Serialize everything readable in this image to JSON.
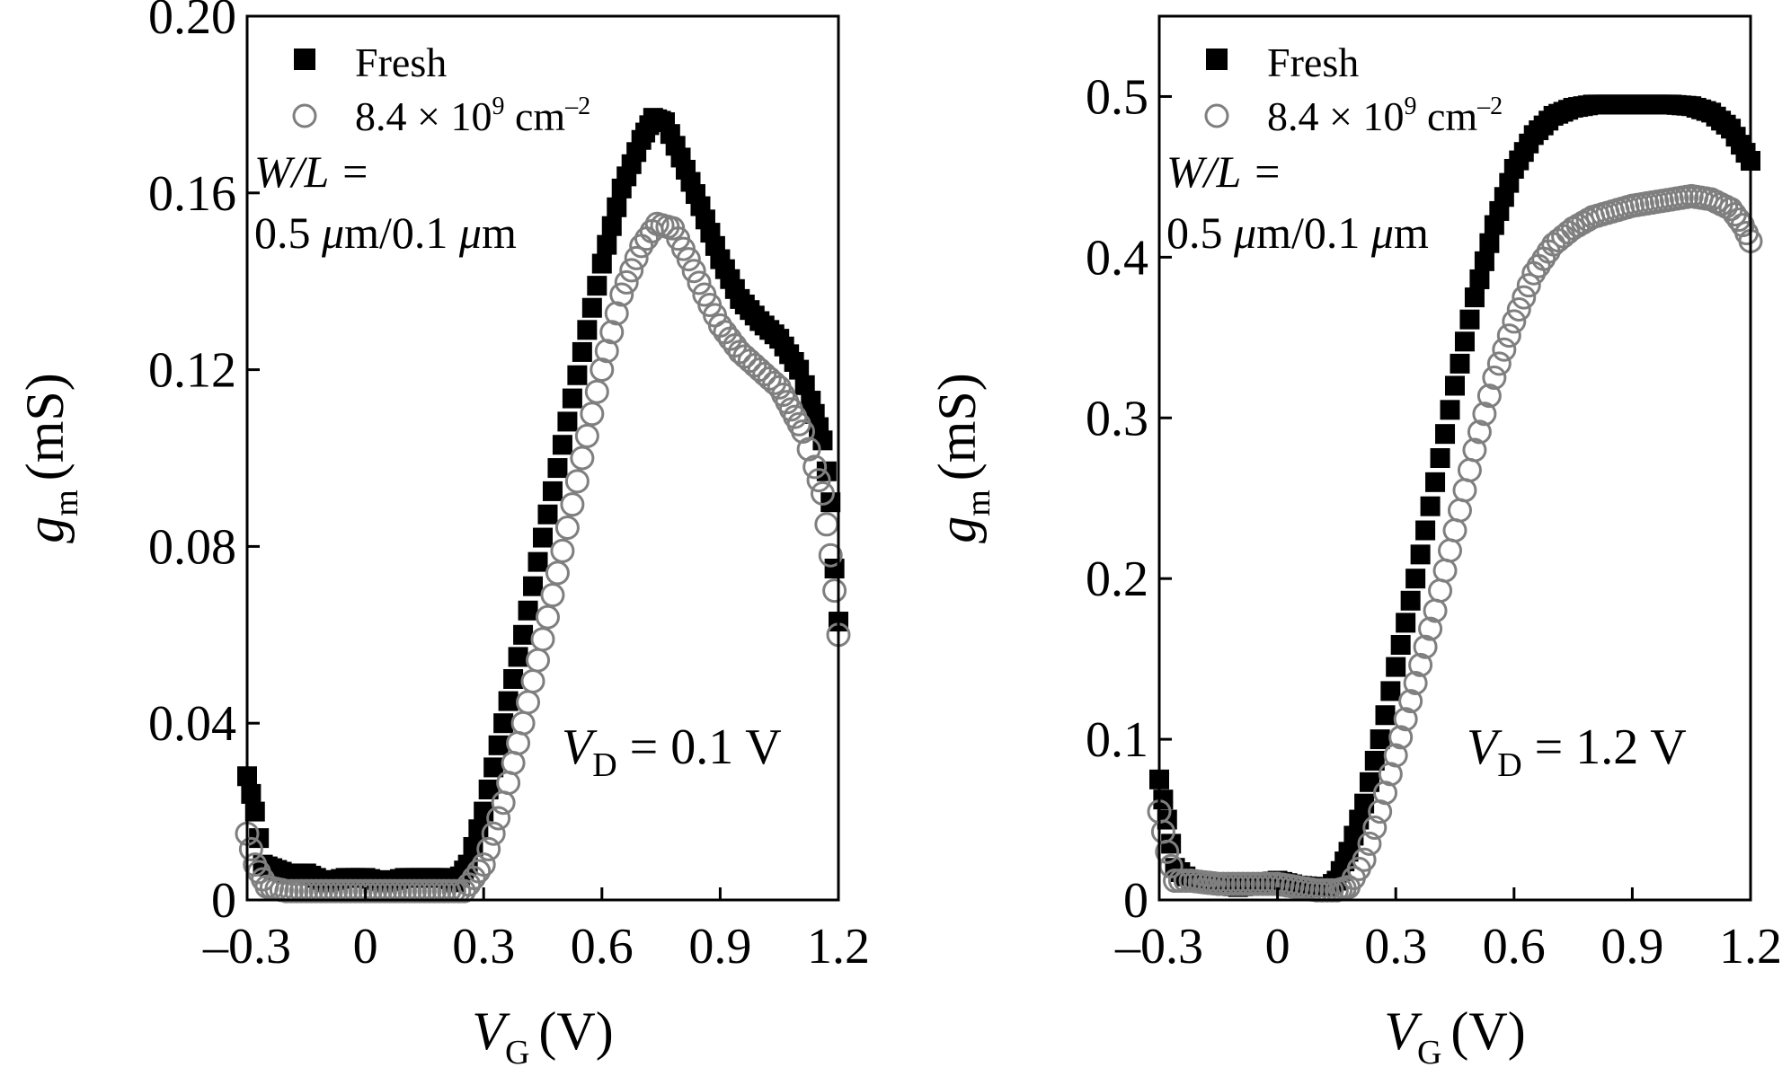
{
  "colors": {
    "fresh": "#000000",
    "stressed": "#7f7f7f",
    "axes": "#000000"
  },
  "chart_data": [
    {
      "type": "scatter",
      "panel": "left",
      "xlabel_main": "V",
      "xlabel_sub": "G",
      "xlabel_unit": "(V)",
      "ylabel_main": "g",
      "ylabel_sub": "m",
      "ylabel_unit": "(mS)",
      "xlim": [
        -0.3,
        1.2
      ],
      "ylim": [
        0,
        0.2
      ],
      "xticks": [
        -0.3,
        0,
        0.3,
        0.6,
        0.9,
        1.2
      ],
      "xtick_labels": [
        "–0.3",
        "0",
        "0.3",
        "0.6",
        "0.9",
        "1.2"
      ],
      "yticks": [
        0,
        0.04,
        0.08,
        0.12,
        0.16,
        0.2
      ],
      "ytick_labels": [
        "0",
        "0.04",
        "0.08",
        "0.12",
        "0.16",
        "0.20"
      ],
      "legend": {
        "position": "top-left",
        "items": [
          "Fresh",
          "8.4 × 10",
          "9",
          " cm",
          "–2"
        ]
      },
      "annotation_wl": {
        "line1": "W/L =",
        "line2_value": "0.5 ",
        "line2_mu": "μ",
        "line2_rest": "m/0.1 ",
        "line2_mu2": "μ",
        "line2_end": "m"
      },
      "annotation_vd": {
        "main": "V",
        "sub": "D",
        "rest": " = 0.1 V"
      },
      "series": [
        {
          "name": "Fresh",
          "marker": "square-filled",
          "points": [
            [
              -0.3,
              0.028
            ],
            [
              -0.28,
              0.02
            ],
            [
              -0.26,
              0.008
            ],
            [
              -0.2,
              0.006
            ],
            [
              -0.15,
              0.006
            ],
            [
              -0.1,
              0.004
            ],
            [
              -0.05,
              0.005
            ],
            [
              0,
              0.005
            ],
            [
              0.05,
              0.004
            ],
            [
              0.1,
              0.005
            ],
            [
              0.15,
              0.005
            ],
            [
              0.2,
              0.005
            ],
            [
              0.23,
              0.004
            ],
            [
              0.26,
              0.008
            ],
            [
              0.3,
              0.02
            ],
            [
              0.35,
              0.04
            ],
            [
              0.4,
              0.06
            ],
            [
              0.45,
              0.082
            ],
            [
              0.5,
              0.103
            ],
            [
              0.55,
              0.124
            ],
            [
              0.6,
              0.144
            ],
            [
              0.65,
              0.161
            ],
            [
              0.7,
              0.172
            ],
            [
              0.73,
              0.177
            ],
            [
              0.76,
              0.176
            ],
            [
              0.8,
              0.168
            ],
            [
              0.85,
              0.157
            ],
            [
              0.9,
              0.145
            ],
            [
              0.95,
              0.136
            ],
            [
              1.0,
              0.131
            ],
            [
              1.05,
              0.127
            ],
            [
              1.1,
              0.12
            ],
            [
              1.13,
              0.113
            ],
            [
              1.16,
              0.104
            ],
            [
              1.18,
              0.09
            ],
            [
              1.19,
              0.075
            ],
            [
              1.2,
              0.063
            ]
          ]
        },
        {
          "name": "8.4 × 10^9 cm^-2",
          "marker": "circle-open",
          "points": [
            [
              -0.3,
              0.015
            ],
            [
              -0.28,
              0.008
            ],
            [
              -0.25,
              0.003
            ],
            [
              -0.2,
              0.002
            ],
            [
              -0.1,
              0.002
            ],
            [
              0,
              0.002
            ],
            [
              0.1,
              0.002
            ],
            [
              0.2,
              0.002
            ],
            [
              0.25,
              0.002
            ],
            [
              0.3,
              0.008
            ],
            [
              0.35,
              0.022
            ],
            [
              0.4,
              0.04
            ],
            [
              0.45,
              0.059
            ],
            [
              0.5,
              0.079
            ],
            [
              0.55,
              0.1
            ],
            [
              0.6,
              0.12
            ],
            [
              0.65,
              0.137
            ],
            [
              0.7,
              0.148
            ],
            [
              0.74,
              0.153
            ],
            [
              0.78,
              0.152
            ],
            [
              0.82,
              0.145
            ],
            [
              0.86,
              0.137
            ],
            [
              0.9,
              0.13
            ],
            [
              0.95,
              0.124
            ],
            [
              1.0,
              0.12
            ],
            [
              1.05,
              0.116
            ],
            [
              1.08,
              0.111
            ],
            [
              1.11,
              0.106
            ],
            [
              1.14,
              0.098
            ],
            [
              1.16,
              0.092
            ],
            [
              1.18,
              0.078
            ],
            [
              1.19,
              0.07
            ],
            [
              1.2,
              0.06
            ]
          ]
        }
      ]
    },
    {
      "type": "scatter",
      "panel": "right",
      "xlabel_main": "V",
      "xlabel_sub": "G",
      "xlabel_unit": "(V)",
      "ylabel_main": "g",
      "ylabel_sub": "m",
      "ylabel_unit": "(mS)",
      "xlim": [
        -0.3,
        1.2
      ],
      "ylim": [
        0,
        0.55
      ],
      "xticks": [
        -0.3,
        0,
        0.3,
        0.6,
        0.9,
        1.2
      ],
      "xtick_labels": [
        "–0.3",
        "0",
        "0.3",
        "0.6",
        "0.9",
        "1.2"
      ],
      "yticks": [
        0,
        0.1,
        0.2,
        0.3,
        0.4,
        0.5
      ],
      "ytick_labels": [
        "0",
        "0.1",
        "0.2",
        "0.3",
        "0.4",
        "0.5"
      ],
      "legend": {
        "position": "top-left",
        "items": [
          "Fresh",
          "8.4 × 10",
          "9",
          " cm",
          "–2"
        ]
      },
      "annotation_wl": {
        "line1": "W/L =",
        "line2_value": "0.5 ",
        "line2_mu": "μ",
        "line2_rest": "m/0.1 ",
        "line2_mu2": "μ",
        "line2_end": "m"
      },
      "annotation_vd": {
        "main": "V",
        "sub": "D",
        "rest": " = 1.2 V"
      },
      "series": [
        {
          "name": "Fresh",
          "marker": "square-filled",
          "points": [
            [
              -0.3,
              0.075
            ],
            [
              -0.28,
              0.05
            ],
            [
              -0.26,
              0.02
            ],
            [
              -0.22,
              0.012
            ],
            [
              -0.15,
              0.01
            ],
            [
              -0.1,
              0.008
            ],
            [
              -0.05,
              0.01
            ],
            [
              0,
              0.012
            ],
            [
              0.05,
              0.009
            ],
            [
              0.1,
              0.008
            ],
            [
              0.13,
              0.008
            ],
            [
              0.15,
              0.012
            ],
            [
              0.18,
              0.03
            ],
            [
              0.22,
              0.06
            ],
            [
              0.26,
              0.1
            ],
            [
              0.3,
              0.145
            ],
            [
              0.35,
              0.2
            ],
            [
              0.4,
              0.26
            ],
            [
              0.45,
              0.32
            ],
            [
              0.5,
              0.375
            ],
            [
              0.55,
              0.42
            ],
            [
              0.6,
              0.455
            ],
            [
              0.65,
              0.476
            ],
            [
              0.7,
              0.488
            ],
            [
              0.75,
              0.493
            ],
            [
              0.8,
              0.495
            ],
            [
              0.9,
              0.495
            ],
            [
              1.0,
              0.495
            ],
            [
              1.05,
              0.494
            ],
            [
              1.1,
              0.49
            ],
            [
              1.15,
              0.48
            ],
            [
              1.2,
              0.46
            ]
          ]
        },
        {
          "name": "8.4 × 10^9 cm^-2",
          "marker": "circle-open",
          "points": [
            [
              -0.3,
              0.055
            ],
            [
              -0.28,
              0.03
            ],
            [
              -0.26,
              0.012
            ],
            [
              -0.22,
              0.012
            ],
            [
              -0.15,
              0.01
            ],
            [
              -0.1,
              0.01
            ],
            [
              -0.05,
              0.01
            ],
            [
              0,
              0.01
            ],
            [
              0.05,
              0.008
            ],
            [
              0.1,
              0.006
            ],
            [
              0.15,
              0.006
            ],
            [
              0.18,
              0.008
            ],
            [
              0.22,
              0.025
            ],
            [
              0.26,
              0.055
            ],
            [
              0.3,
              0.09
            ],
            [
              0.35,
              0.135
            ],
            [
              0.4,
              0.18
            ],
            [
              0.45,
              0.23
            ],
            [
              0.5,
              0.28
            ],
            [
              0.55,
              0.325
            ],
            [
              0.6,
              0.36
            ],
            [
              0.65,
              0.39
            ],
            [
              0.7,
              0.408
            ],
            [
              0.75,
              0.418
            ],
            [
              0.8,
              0.425
            ],
            [
              0.9,
              0.432
            ],
            [
              1.0,
              0.436
            ],
            [
              1.05,
              0.438
            ],
            [
              1.1,
              0.436
            ],
            [
              1.15,
              0.43
            ],
            [
              1.18,
              0.42
            ],
            [
              1.2,
              0.41
            ]
          ]
        }
      ]
    }
  ]
}
